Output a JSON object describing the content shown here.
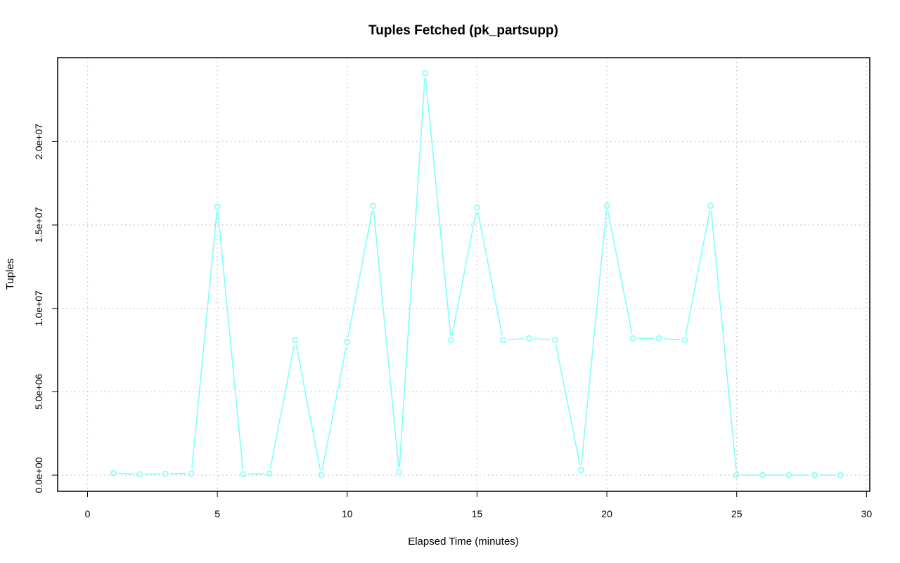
{
  "chart_data": {
    "type": "line",
    "title": "Tuples Fetched (pk_partsupp)",
    "xlabel": "Elapsed Time (minutes)",
    "ylabel": "Tuples",
    "xlim": [
      0,
      30
    ],
    "ylim": [
      0,
      24000000
    ],
    "x_ticks": [
      0,
      5,
      10,
      15,
      20,
      25,
      30
    ],
    "x_tick_labels": [
      "0",
      "5",
      "10",
      "15",
      "20",
      "25",
      "30"
    ],
    "y_ticks": [
      0,
      5000000,
      10000000,
      15000000,
      20000000
    ],
    "y_tick_labels": [
      "0.0e+00",
      "5.0e+06",
      "1.0e+07",
      "1.5e+07",
      "2.0e+07"
    ],
    "grid": true,
    "line_color": "#7FFFFF",
    "series": [
      {
        "x": [
          1,
          2,
          3,
          4,
          5,
          6,
          7,
          8,
          9,
          10,
          11,
          12,
          13,
          14,
          15,
          16,
          17,
          18,
          19,
          20,
          21,
          22,
          23,
          24,
          25,
          26,
          27,
          28,
          29
        ],
        "values": [
          120000,
          50000,
          80000,
          100000,
          16100000,
          50000,
          100000,
          8100000,
          0,
          8000000,
          16150000,
          200000,
          24100000,
          8100000,
          16050000,
          8100000,
          8200000,
          8100000,
          300000,
          16150000,
          8200000,
          8200000,
          8100000,
          16150000,
          0,
          0,
          0,
          0,
          0
        ]
      }
    ]
  }
}
